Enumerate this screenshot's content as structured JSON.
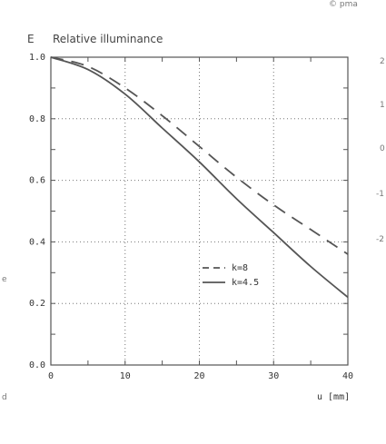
{
  "corner_mark": "© pma",
  "chart_data": {
    "type": "line",
    "y_symbol": "E",
    "title": "Relative illuminance",
    "xlabel": "u [mm]",
    "ylabel": "",
    "xlim": [
      0,
      40
    ],
    "ylim": [
      0,
      1.0
    ],
    "x_ticks": [
      0,
      10,
      20,
      30,
      40
    ],
    "y_ticks": [
      0.0,
      0.2,
      0.4,
      0.6,
      0.8,
      1.0
    ],
    "y_tick_labels": [
      "0.0",
      "0.2",
      "0.4",
      "0.6",
      "0.8",
      "1.0"
    ],
    "grid": true,
    "legend_position": "lower-right inside plot",
    "series": [
      {
        "name": "k=8",
        "style": "dashed",
        "color": "#555555",
        "x": [
          0,
          5,
          10,
          15,
          20,
          25,
          30,
          35,
          40
        ],
        "y": [
          1.0,
          0.97,
          0.9,
          0.81,
          0.71,
          0.61,
          0.52,
          0.44,
          0.36
        ]
      },
      {
        "name": "k=4.5",
        "style": "solid",
        "color": "#555555",
        "x": [
          0,
          5,
          10,
          15,
          20,
          25,
          30,
          35,
          40
        ],
        "y": [
          1.0,
          0.96,
          0.88,
          0.77,
          0.66,
          0.54,
          0.43,
          0.32,
          0.22
        ]
      }
    ]
  },
  "edge_fragments": {
    "right_top": "2",
    "right_1": "1",
    "right_2": "0",
    "right_3": "-1",
    "right_4": "-2",
    "left_1": "e",
    "left_2": "d"
  }
}
